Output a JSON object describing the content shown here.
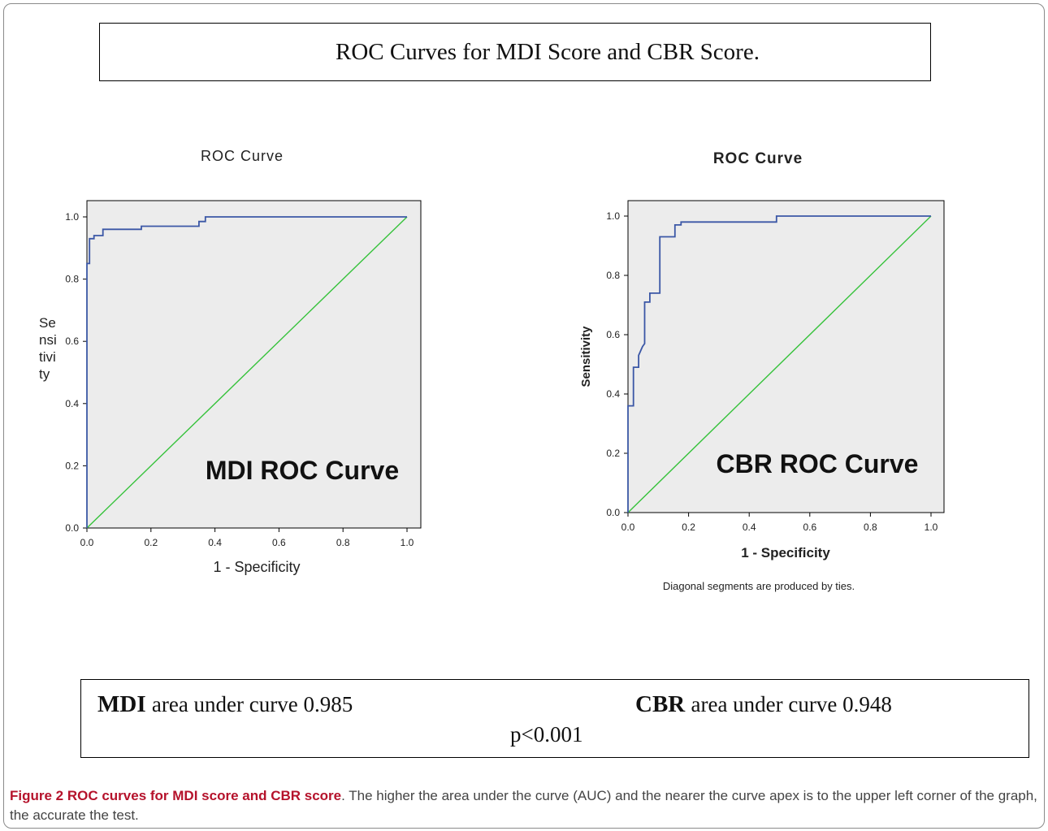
{
  "banner_title": "ROC Curves for MDI Score and CBR Score.",
  "colors": {
    "curve": "#3b57a6",
    "diagonal": "#35c23a",
    "plot_bg": "#ececec",
    "caption_label": "#b5122b"
  },
  "chart_data": [
    {
      "type": "line",
      "title": "ROC Curve",
      "xlabel": "1 - Specificity",
      "ylabel": "Se nsi tivi ty",
      "ylabel_lines": [
        "Se",
        "nsi",
        "tivi",
        "ty"
      ],
      "annotation": "MDI ROC Curve",
      "note": "",
      "xlim": [
        0,
        1
      ],
      "ylim": [
        0,
        1
      ],
      "xticks": [
        "0.0",
        "0.2",
        "0.4",
        "0.6",
        "0.8",
        "1.0"
      ],
      "yticks": [
        "0.0",
        "0.2",
        "0.4",
        "0.6",
        "0.8",
        "1.0"
      ],
      "grid": false,
      "series": [
        {
          "x": [
            0.0,
            0.0,
            0.008,
            0.008,
            0.022,
            0.022,
            0.05,
            0.05,
            0.17,
            0.17,
            0.35,
            0.35,
            0.37,
            0.37,
            1.0
          ],
          "y": [
            0.0,
            0.85,
            0.85,
            0.93,
            0.93,
            0.94,
            0.94,
            0.96,
            0.96,
            0.97,
            0.97,
            0.985,
            0.985,
            1.0,
            1.0
          ]
        },
        {
          "x": [
            0,
            1
          ],
          "y": [
            0,
            1
          ]
        }
      ]
    },
    {
      "type": "line",
      "title": "ROC Curve",
      "xlabel": "1 - Specificity",
      "ylabel": "Sensitivity",
      "ylabel_lines": [
        "Sensitivity"
      ],
      "annotation": "CBR ROC Curve",
      "note": "Diagonal segments are produced by ties.",
      "xlim": [
        0,
        1
      ],
      "ylim": [
        0,
        1
      ],
      "xticks": [
        "0.0",
        "0.2",
        "0.4",
        "0.6",
        "0.8",
        "1.0"
      ],
      "yticks": [
        "0.0",
        "0.2",
        "0.4",
        "0.6",
        "0.8",
        "1.0"
      ],
      "grid": false,
      "series": [
        {
          "x": [
            0.0,
            0.0,
            0.018,
            0.018,
            0.035,
            0.035,
            0.048,
            0.055,
            0.055,
            0.072,
            0.072,
            0.105,
            0.105,
            0.155,
            0.155,
            0.175,
            0.175,
            0.49,
            0.49,
            1.0
          ],
          "y": [
            0.0,
            0.36,
            0.36,
            0.49,
            0.49,
            0.53,
            0.56,
            0.57,
            0.71,
            0.71,
            0.74,
            0.74,
            0.93,
            0.93,
            0.97,
            0.97,
            0.98,
            0.98,
            1.0,
            1.0
          ]
        },
        {
          "x": [
            0,
            1
          ],
          "y": [
            0,
            1
          ]
        }
      ]
    }
  ],
  "summary": {
    "mdi_label": "MDI",
    "mdi_text": "area under curve 0.985",
    "cbr_label": "CBR",
    "cbr_text": "area under curve 0.948",
    "p_value": "p<0.001"
  },
  "caption": {
    "label": "Figure 2 ROC curves for MDI score and CBR score",
    "text": ". The higher the area under the curve (AUC) and the nearer the curve apex is to the upper left corner of the graph, the accurate the test."
  }
}
